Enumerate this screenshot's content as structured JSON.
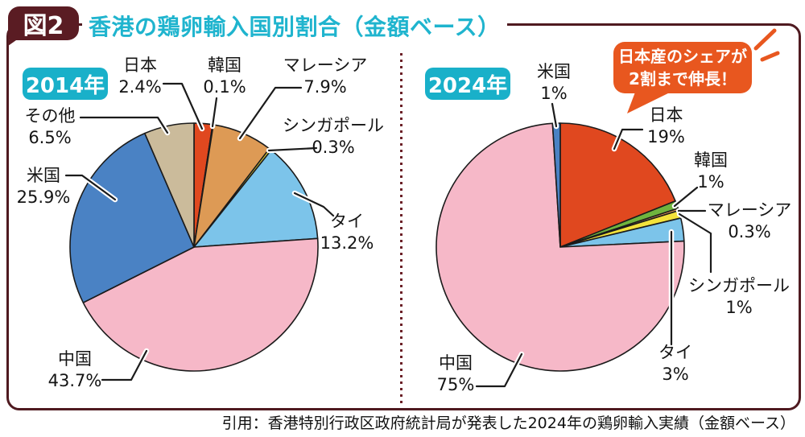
{
  "page": {
    "figure_badge": "図2",
    "title": "香港の鶏卵輸入国別割合（金額ベース）",
    "citation": "引用：香港特別行政区政府統計局が発表した2024年の鶏卵輸入実績（金額ベース）",
    "title_color": "#1fb4ce",
    "frame_color": "#4f1a20",
    "year_badge_bg": "#19b0c9",
    "figure_badge_bg": "#5a1c23"
  },
  "callout": {
    "line1": "日本産のシェアが",
    "line2": "2割まで伸長！",
    "bg": "#e8571f"
  },
  "chart_data": [
    {
      "type": "pie",
      "year_label": "2014年",
      "unit": "%",
      "start": "12 o'clock",
      "direction": "clockwise",
      "slices": [
        {
          "label": "日本",
          "value": 2.4,
          "display": "2.4%",
          "color": "#e0481f"
        },
        {
          "label": "韓国",
          "value": 0.1,
          "display": "0.1%",
          "color": "#6fb43e"
        },
        {
          "label": "マレーシア",
          "value": 7.9,
          "display": "7.9%",
          "color": "#dd9a55"
        },
        {
          "label": "シンガポール",
          "value": 0.3,
          "display": "0.3%",
          "color": "#f3e23b"
        },
        {
          "label": "タイ",
          "value": 13.2,
          "display": "13.2%",
          "color": "#7cc4ea"
        },
        {
          "label": "中国",
          "value": 43.7,
          "display": "43.7%",
          "color": "#f6b8c8"
        },
        {
          "label": "米国",
          "value": 25.9,
          "display": "25.9%",
          "color": "#4a82c4"
        },
        {
          "label": "その他",
          "value": 6.5,
          "display": "6.5%",
          "color": "#cbbb9b"
        }
      ]
    },
    {
      "type": "pie",
      "year_label": "2024年",
      "unit": "%",
      "start": "12 o'clock",
      "direction": "clockwise",
      "slices": [
        {
          "label": "日本",
          "value": 19,
          "display": "19%",
          "color": "#e0481f"
        },
        {
          "label": "韓国",
          "value": 1,
          "display": "1%",
          "color": "#6fb43e"
        },
        {
          "label": "マレーシア",
          "value": 0.3,
          "display": "0.3%",
          "color": "#dd9a55"
        },
        {
          "label": "シンガポール",
          "value": 1,
          "display": "1%",
          "color": "#f3e23b"
        },
        {
          "label": "タイ",
          "value": 3,
          "display": "3%",
          "color": "#7cc4ea"
        },
        {
          "label": "中国",
          "value": 75,
          "display": "75%",
          "color": "#f6b8c8"
        },
        {
          "label": "米国",
          "value": 1,
          "display": "1%",
          "color": "#4a82c4"
        }
      ]
    }
  ]
}
